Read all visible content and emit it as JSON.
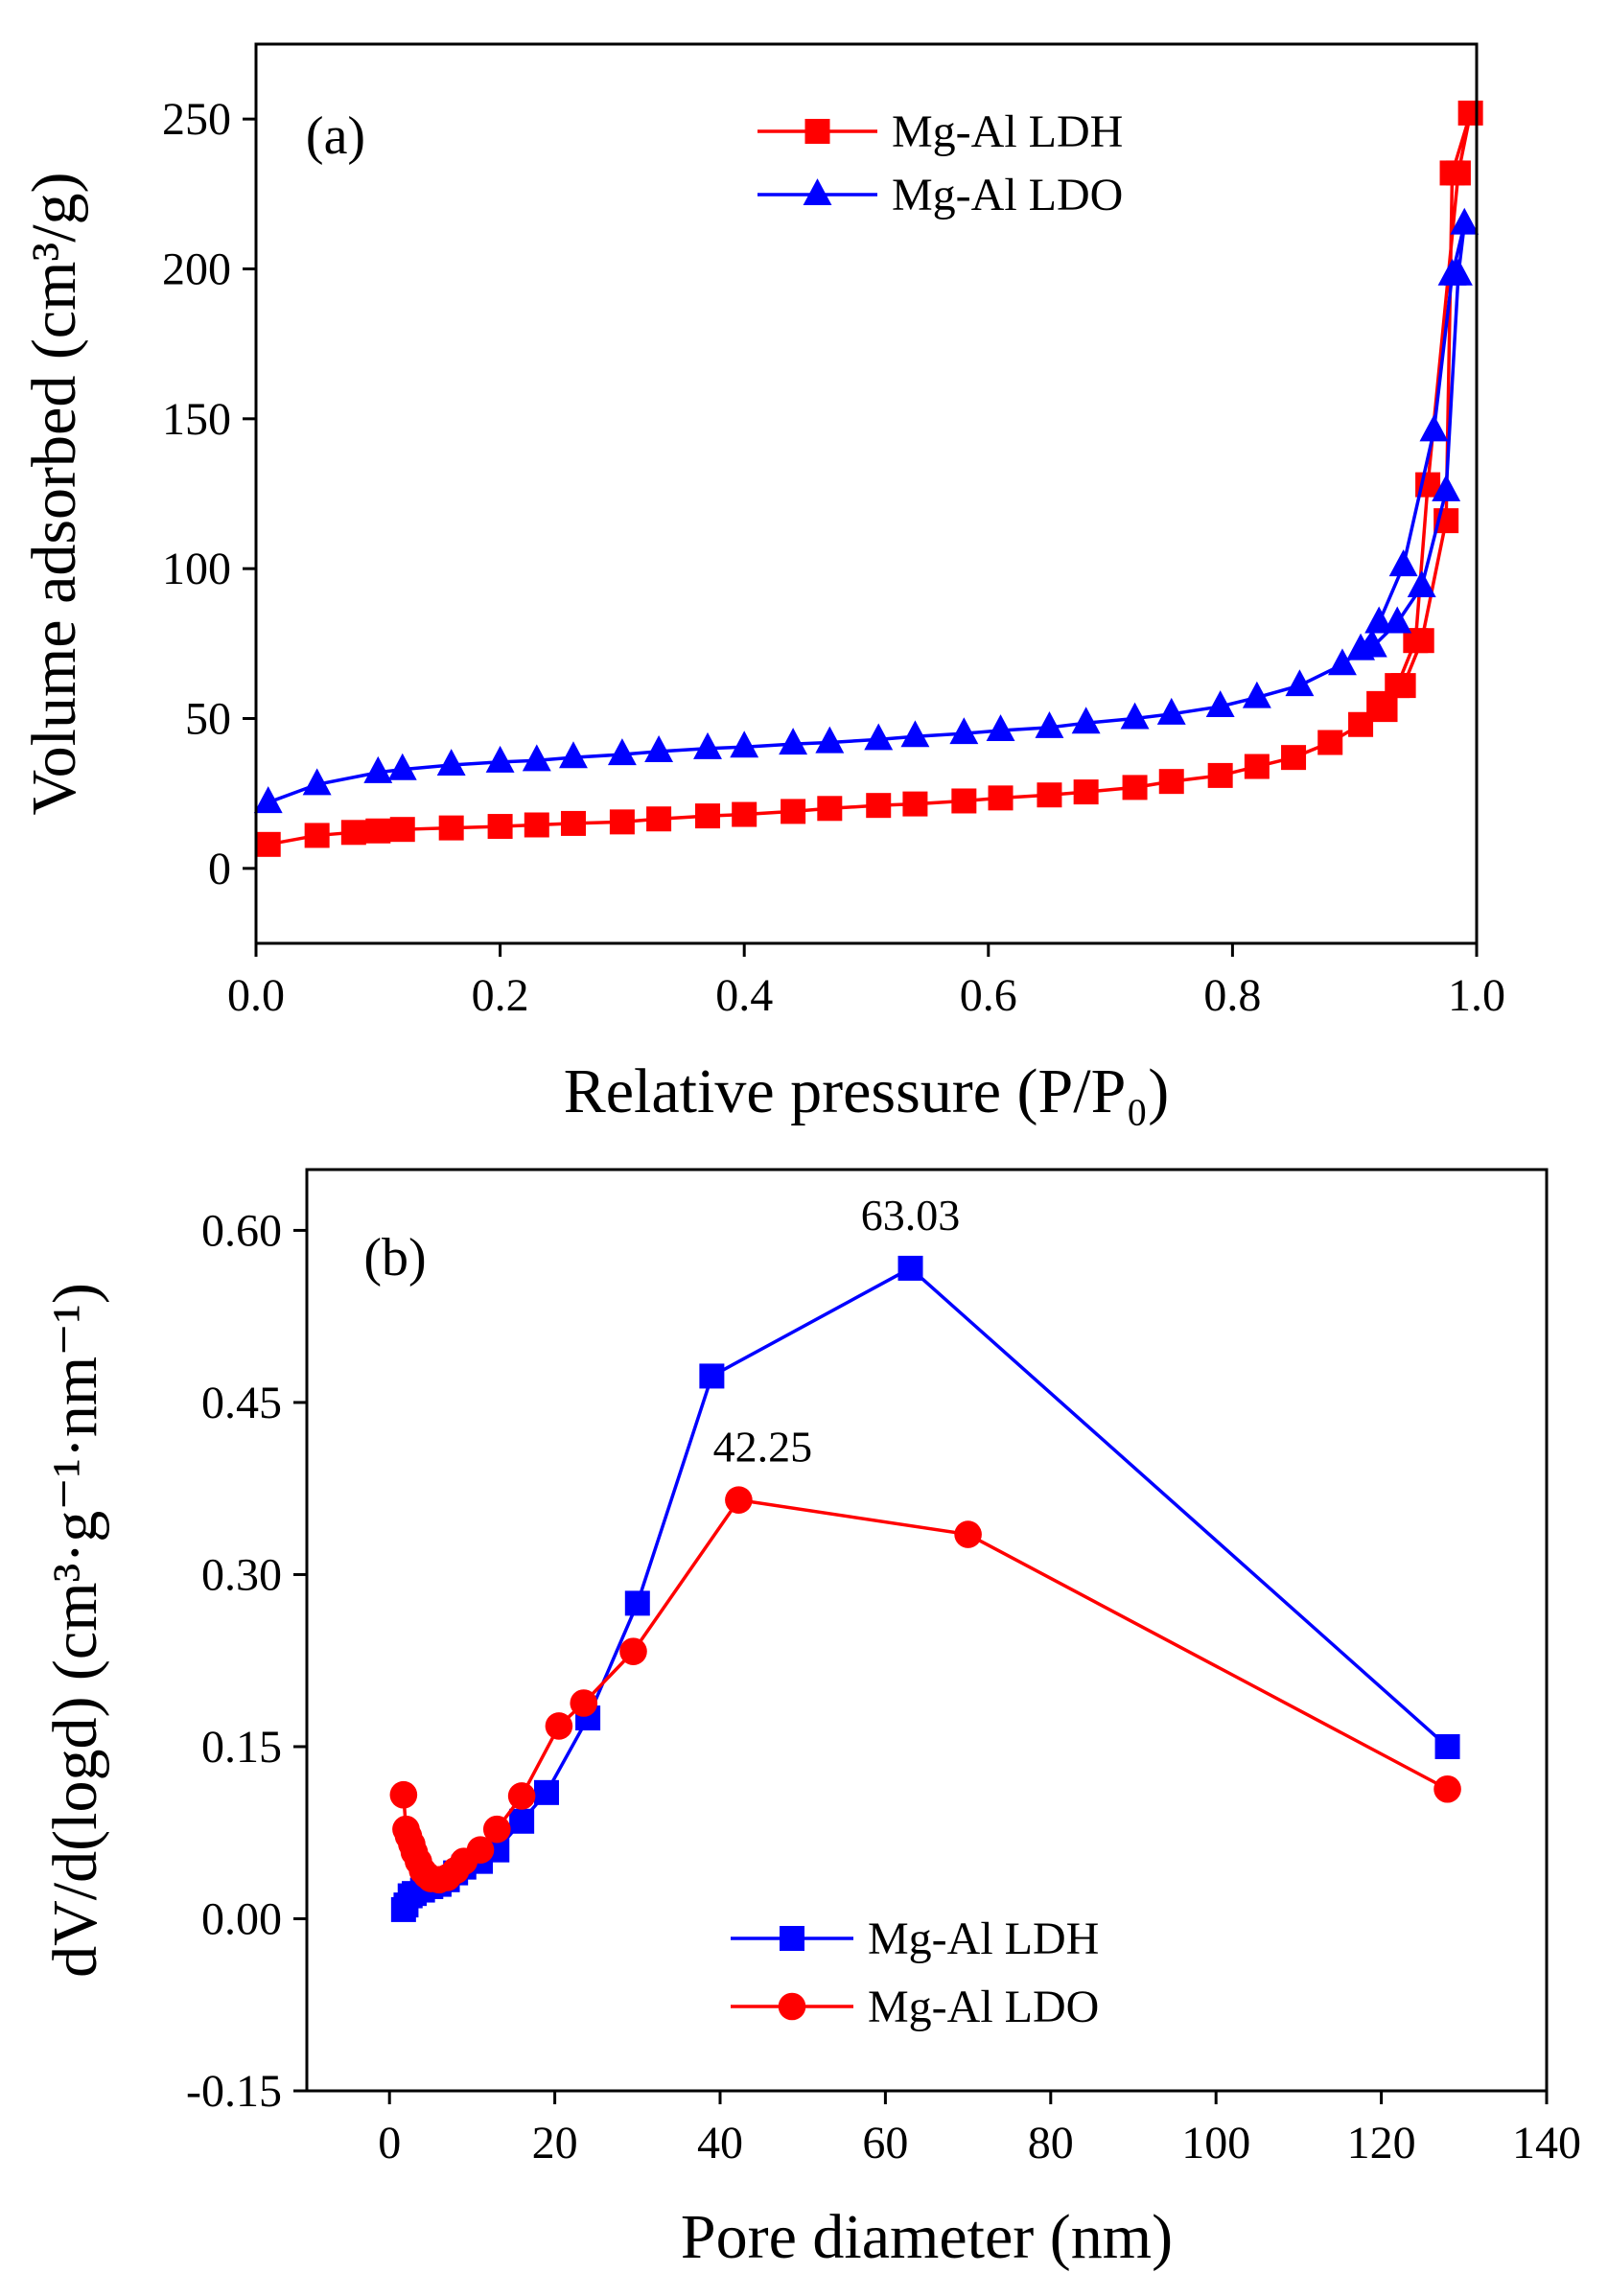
{
  "chart_data": [
    {
      "type": "line",
      "panel_label": "(a)",
      "xlabel": "Relative pressure (P/P₀)",
      "ylabel": "Volume adsorbed (cm³/g)",
      "xlim": [
        0.0,
        1.0
      ],
      "ylim": [
        -25,
        275
      ],
      "xticks": [
        0.0,
        0.2,
        0.4,
        0.6,
        0.8,
        1.0
      ],
      "xtick_labels": [
        "0.0",
        "0.2",
        "0.4",
        "0.6",
        "0.8",
        "1.0"
      ],
      "yticks": [
        0,
        50,
        100,
        150,
        200,
        250
      ],
      "ytick_labels": [
        "0",
        "50",
        "100",
        "150",
        "200",
        "250"
      ],
      "legend_position": "top-center",
      "series": [
        {
          "name": "Mg-Al LDH",
          "color": "#ff0000",
          "marker": "square",
          "x": [
            0.01,
            0.05,
            0.08,
            0.1,
            0.12,
            0.16,
            0.2,
            0.23,
            0.26,
            0.3,
            0.33,
            0.37,
            0.4,
            0.44,
            0.47,
            0.51,
            0.54,
            0.58,
            0.61,
            0.65,
            0.68,
            0.72,
            0.75,
            0.79,
            0.82,
            0.85,
            0.88,
            0.905,
            0.92,
            0.935,
            0.95,
            0.96,
            0.985,
            0.995,
            0.98,
            0.975,
            0.955,
            0.94,
            0.925
          ],
          "y": [
            8,
            11,
            12,
            12.5,
            13,
            13.5,
            14,
            14.5,
            15,
            15.5,
            16.5,
            17.5,
            18,
            19,
            20,
            21,
            21.5,
            22.5,
            23.5,
            24.5,
            25.5,
            27,
            29,
            31,
            34,
            37,
            42,
            48,
            55,
            61,
            76,
            128,
            232,
            252,
            232,
            116,
            76,
            61,
            53
          ]
        },
        {
          "name": "Mg-Al LDO",
          "color": "#0000ff",
          "marker": "triangle",
          "x": [
            0.01,
            0.05,
            0.1,
            0.12,
            0.16,
            0.2,
            0.23,
            0.26,
            0.3,
            0.33,
            0.37,
            0.4,
            0.44,
            0.47,
            0.51,
            0.54,
            0.58,
            0.61,
            0.65,
            0.68,
            0.72,
            0.75,
            0.79,
            0.82,
            0.855,
            0.89,
            0.905,
            0.92,
            0.94,
            0.965,
            0.98,
            0.99,
            0.985,
            0.975,
            0.955,
            0.935,
            0.915
          ],
          "y": [
            22,
            28,
            32,
            33,
            34.5,
            35.5,
            36,
            37,
            38,
            39,
            40,
            40.5,
            41.5,
            42,
            43,
            44,
            45,
            46,
            47,
            48.5,
            50,
            51.5,
            54,
            57,
            61,
            68,
            73,
            82,
            101,
            146,
            198,
            215,
            198,
            126,
            94,
            82,
            74
          ]
        }
      ]
    },
    {
      "type": "line",
      "panel_label": "(b)",
      "xlabel": "Pore diameter (nm)",
      "ylabel": "dV/d(logd) (cm³·g⁻¹·nm⁻¹)",
      "xlim": [
        -10,
        140
      ],
      "ylim": [
        -0.15,
        0.653
      ],
      "xticks": [
        0,
        20,
        40,
        60,
        80,
        100,
        120,
        140
      ],
      "xtick_labels": [
        "0",
        "20",
        "40",
        "60",
        "80",
        "100",
        "120",
        "140"
      ],
      "yticks": [
        -0.15,
        0.0,
        0.15,
        0.3,
        0.45,
        0.6
      ],
      "ytick_labels": [
        "-0.15",
        "0.00",
        "0.15",
        "0.30",
        "0.45",
        "0.60"
      ],
      "legend_position": "bottom-center",
      "annotations": [
        {
          "text": "63.03",
          "x": 63.03,
          "y": 0.567,
          "series": "Mg-Al LDH"
        },
        {
          "text": "42.25",
          "x": 42.25,
          "y": 0.365,
          "series": "Mg-Al LDO"
        }
      ],
      "series": [
        {
          "name": "Mg-Al LDH",
          "color": "#0000ff",
          "marker": "square",
          "x": [
            1.7,
            2,
            2.5,
            3,
            4,
            5,
            6,
            7,
            8,
            9,
            11,
            13,
            16,
            19,
            24,
            30,
            39,
            63.03,
            128
          ],
          "y": [
            0.008,
            0.012,
            0.02,
            0.022,
            0.025,
            0.028,
            0.03,
            0.034,
            0.04,
            0.045,
            0.05,
            0.06,
            0.085,
            0.11,
            0.175,
            0.275,
            0.473,
            0.567,
            0.15
          ]
        },
        {
          "name": "Mg-Al LDO",
          "color": "#ff0000",
          "marker": "circle",
          "x": [
            1.7,
            2,
            2.3,
            2.7,
            3,
            3.5,
            4,
            4.5,
            5,
            6,
            7,
            8,
            9,
            11,
            13,
            16,
            20.5,
            23.5,
            29.5,
            42.25,
            70,
            128
          ],
          "y": [
            0.108,
            0.078,
            0.072,
            0.065,
            0.058,
            0.05,
            0.042,
            0.038,
            0.035,
            0.034,
            0.036,
            0.042,
            0.05,
            0.06,
            0.078,
            0.107,
            0.168,
            0.188,
            0.233,
            0.365,
            0.335,
            0.113
          ]
        }
      ]
    }
  ]
}
